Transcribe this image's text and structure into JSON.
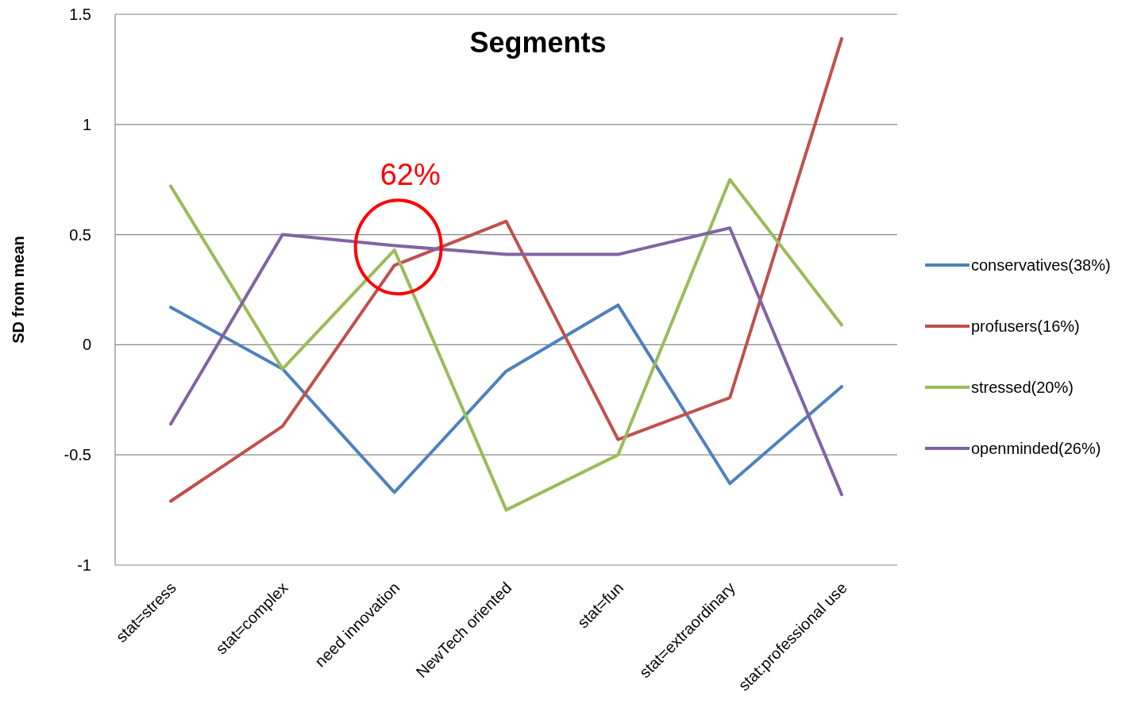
{
  "chart_data": {
    "type": "line",
    "title": "Segments",
    "ylabel": "SD from mean",
    "categories": [
      "stat=stress",
      "stat=complex",
      "need innovation",
      "NewTech oriented",
      "stat=fun",
      "stat=extraordinary",
      "stat:professional use"
    ],
    "series": [
      {
        "name": "conservatives(38%)",
        "color": "#4f81bd",
        "values": [
          0.17,
          -0.11,
          -0.67,
          -0.12,
          0.18,
          -0.63,
          -0.19
        ]
      },
      {
        "name": "profusers(16%)",
        "color": "#c0504d",
        "values": [
          -0.71,
          -0.37,
          0.36,
          0.56,
          -0.43,
          -0.24,
          1.39
        ]
      },
      {
        "name": "stressed(20%)",
        "color": "#9bbb59",
        "values": [
          0.72,
          -0.11,
          0.43,
          -0.75,
          -0.5,
          0.75,
          0.09
        ]
      },
      {
        "name": "openminded(26%)",
        "color": "#8064a2",
        "values": [
          -0.36,
          0.5,
          0.45,
          0.41,
          0.41,
          0.53,
          -0.68
        ]
      }
    ],
    "annotations": [
      "62%"
    ],
    "ylim": [
      -1,
      1.5
    ],
    "yticks": [
      -1,
      {
        "value": -0.5,
        "label": "-0.5"
      },
      0,
      {
        "value": 0.5,
        "label": "0.5"
      },
      1,
      {
        "value": 1.5,
        "label": "1.5"
      }
    ],
    "grid": "y",
    "legend": "right",
    "marker": "none",
    "line_style": "solid"
  }
}
